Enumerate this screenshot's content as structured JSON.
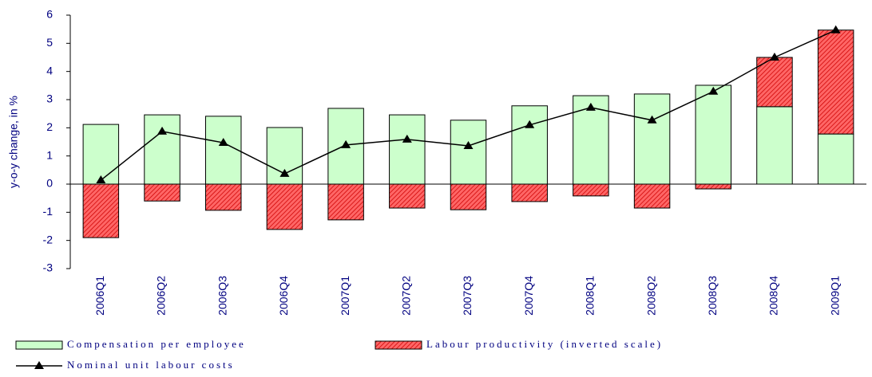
{
  "chart_data": {
    "type": "bar",
    "y_label": "y-o-y change, in %",
    "categories": [
      "2006Q1",
      "2006Q2",
      "2006Q3",
      "2006Q4",
      "2007Q1",
      "2007Q2",
      "2007Q3",
      "2007Q4",
      "2008Q1",
      "2008Q2",
      "2008Q3",
      "2008Q4",
      "2009Q1"
    ],
    "series": [
      {
        "name": "Compensation per employee",
        "type": "bar",
        "color": "#ccffcc",
        "values": [
          2.12,
          2.46,
          2.41,
          2.01,
          2.69,
          2.46,
          2.27,
          2.78,
          3.14,
          3.2,
          3.51,
          2.75,
          1.78
        ]
      },
      {
        "name": "Labour productivity (inverted scale)",
        "type": "bar",
        "color": "#ff6666",
        "hatch": true,
        "values": [
          -1.9,
          -0.6,
          -0.93,
          -1.61,
          -1.27,
          -0.85,
          -0.91,
          -0.62,
          -0.42,
          -0.85,
          -0.17,
          1.75,
          3.69
        ]
      },
      {
        "name": "Nominal unit labour costs",
        "type": "line",
        "color": "#000000",
        "values": [
          0.14,
          1.87,
          1.47,
          0.37,
          1.39,
          1.59,
          1.36,
          2.1,
          2.72,
          2.27,
          3.29,
          4.5,
          5.47
        ]
      }
    ],
    "ylim": [
      -3,
      6
    ],
    "yticks": [
      -3,
      -2,
      -1,
      0,
      1,
      2,
      3,
      4,
      5,
      6
    ],
    "grid": false
  }
}
